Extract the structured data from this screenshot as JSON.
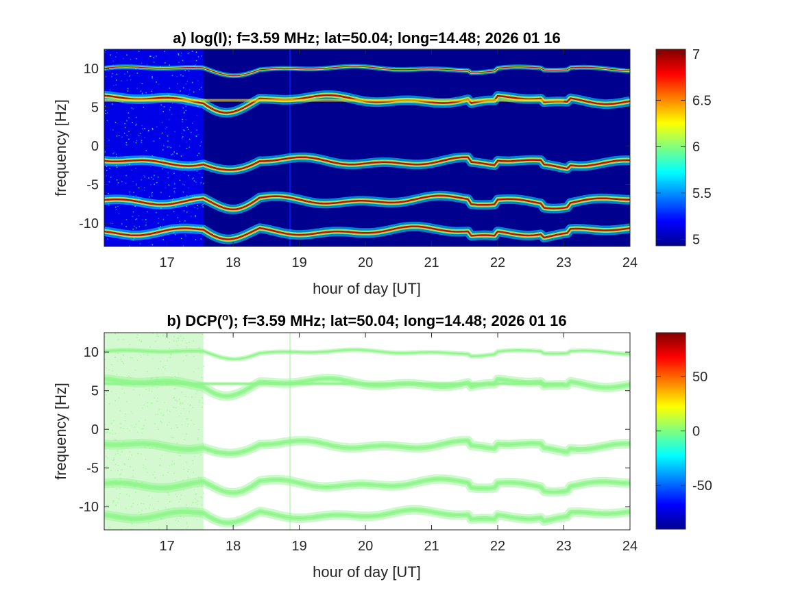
{
  "chart_data": [
    {
      "type": "heatmap",
      "panel": "a",
      "title": "a) log(I); f=3.59 MHz;  lat=50.04; long=14.48; 2026 01 16",
      "xlabel": "hour of day [UT]",
      "ylabel": "frequency [Hz]",
      "xlim": [
        16.05,
        24
      ],
      "ylim": [
        -13,
        12.5
      ],
      "xticks": [
        17,
        18,
        19,
        20,
        21,
        22,
        23,
        24
      ],
      "yticks": [
        10,
        5,
        0,
        -5,
        -10
      ],
      "colormap": "jet",
      "clim": [
        4.93,
        7.05
      ],
      "colorbar_ticks": [
        7,
        6.5,
        6,
        5.5,
        5
      ],
      "background_value": 4.95,
      "noisy_region_x": [
        16.05,
        17.55
      ],
      "ridge_frequencies_hz": [
        10,
        6,
        -2,
        -7,
        -11
      ],
      "ridge_peak_value": 6.9
    },
    {
      "type": "heatmap",
      "panel": "b",
      "title_prefix": "b) DCP(",
      "title_super": "o",
      "title_suffix": "); f=3.59 MHz;  lat=50.04; long=14.48; 2026 01 16",
      "xlabel": "hour of day [UT]",
      "ylabel": "frequency [Hz]",
      "xlim": [
        16.05,
        24
      ],
      "ylim": [
        -13,
        12.5
      ],
      "xticks": [
        17,
        18,
        19,
        20,
        21,
        22,
        23,
        24
      ],
      "yticks": [
        10,
        5,
        0,
        -5,
        -10
      ],
      "colormap": "jet",
      "clim": [
        -90,
        90
      ],
      "colorbar_ticks": [
        50,
        0,
        -50
      ],
      "dominant_value": 5,
      "noisy_region_x": [
        16.05,
        17.55
      ],
      "ridge_frequencies_hz": [
        10,
        6,
        -2,
        -7,
        -11
      ]
    }
  ],
  "colors": {
    "jet_dark_blue": "#00008f",
    "dcp_green": "#8ef58a",
    "axis": "#262626"
  }
}
